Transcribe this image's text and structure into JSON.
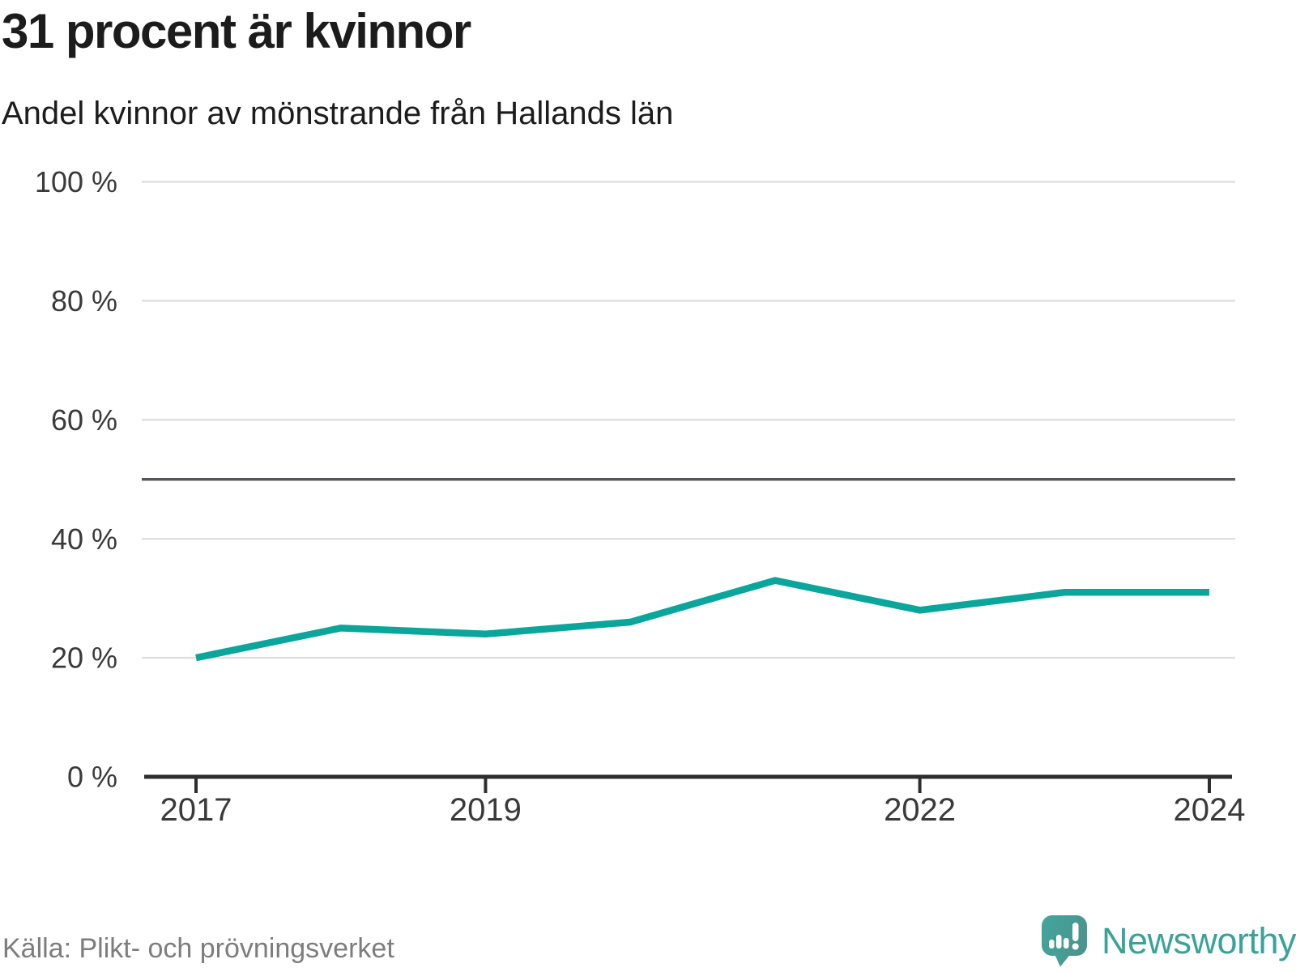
{
  "header": {
    "title": "31 procent är kvinnor",
    "subtitle": "Andel kvinnor av mönstrande från Hallands län"
  },
  "footer": {
    "source": "Källa: Plikt- och prövningsverket",
    "brand": "Newsworthy"
  },
  "colors": {
    "line": "#0aa59b",
    "grid": "#e0e0e0",
    "reference_line": "#55555c",
    "axis": "#2e2e2e",
    "tick_text": "#3a3a3a",
    "title_text": "#1c1c1c",
    "source_text": "#7d7d7d",
    "brand_teal": "#3ba29a",
    "logo_fill_start": "#42a59c",
    "logo_fill_end": "#4a958e"
  },
  "chart_data": {
    "type": "line",
    "title": "31 procent är kvinnor",
    "subtitle": "Andel kvinnor av mönstrande från Hallands län",
    "x": [
      2017,
      2018,
      2019,
      2020,
      2021,
      2022,
      2023,
      2024
    ],
    "series": [
      {
        "name": "Andel kvinnor av mönstrande från Hallands län",
        "values": [
          20,
          25,
          24,
          26,
          33,
          28,
          31,
          31
        ]
      }
    ],
    "unit": "%",
    "ylim": [
      0,
      100
    ],
    "yticks": [
      0,
      20,
      40,
      60,
      80,
      100
    ],
    "ytick_labels": [
      "0 %",
      "20 %",
      "40 %",
      "60 %",
      "80 %",
      "100 %"
    ],
    "xticks": [
      2017,
      2019,
      2022,
      2024
    ],
    "xtick_labels": [
      "2017",
      "2019",
      "2022",
      "2024"
    ],
    "reference_line": 50,
    "grid": true,
    "legend": "none",
    "source": "Källa: Plikt- och prövningsverket"
  }
}
